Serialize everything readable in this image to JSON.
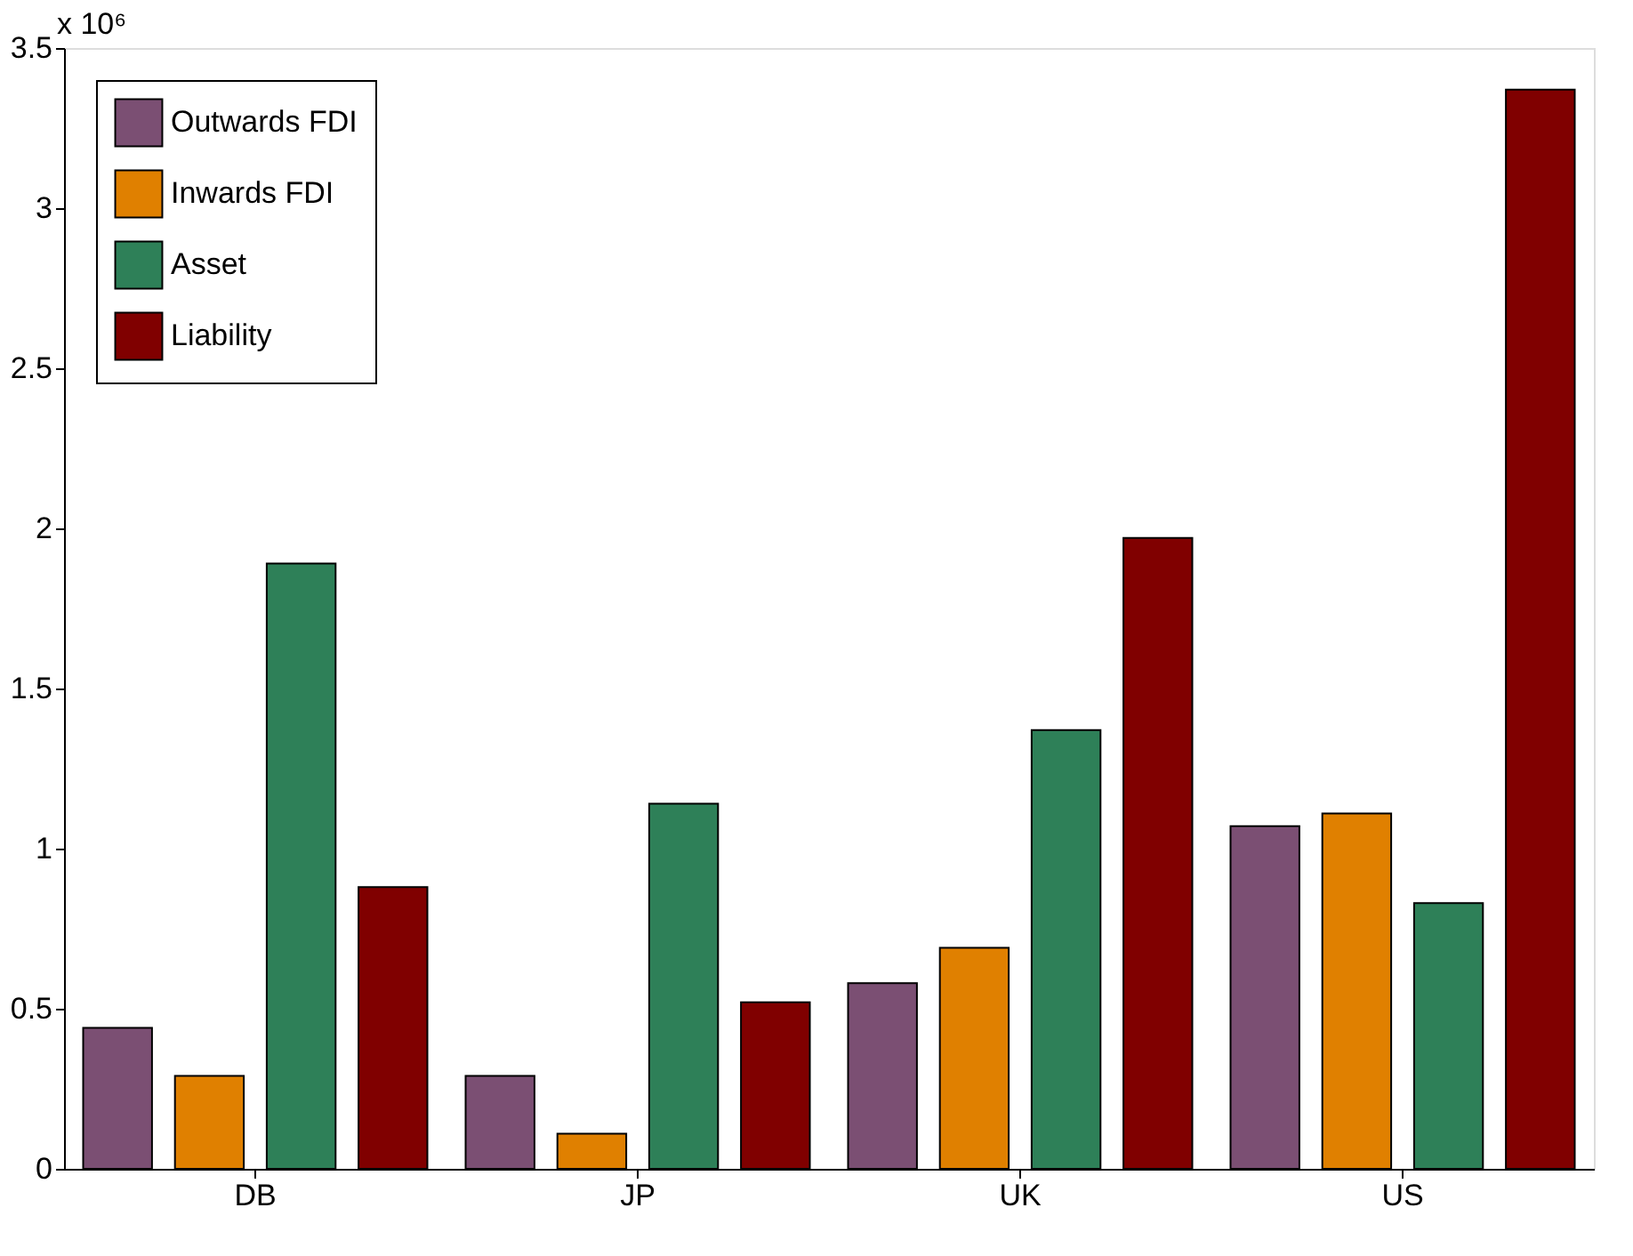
{
  "chart_data": {
    "type": "bar",
    "categories": [
      "DB",
      "JP",
      "UK",
      "US"
    ],
    "series": [
      {
        "name": "Outwards FDI",
        "color": "#7b4f73",
        "values": [
          0.44,
          0.29,
          0.58,
          1.07
        ]
      },
      {
        "name": "Inwards FDI",
        "color": "#e08000",
        "values": [
          0.29,
          0.11,
          0.69,
          1.11
        ]
      },
      {
        "name": "Asset",
        "color": "#2e8058",
        "values": [
          1.89,
          1.14,
          1.37,
          0.83
        ]
      },
      {
        "name": "Liability",
        "color": "#800000",
        "values": [
          0.88,
          0.52,
          1.97,
          3.37
        ]
      }
    ],
    "ylim": [
      0,
      3.5
    ],
    "yticks": [
      0,
      0.5,
      1,
      1.5,
      2,
      2.5,
      3,
      3.5
    ],
    "annotations": [
      "x 10⁶"
    ],
    "grid": false,
    "legend": "top left"
  }
}
